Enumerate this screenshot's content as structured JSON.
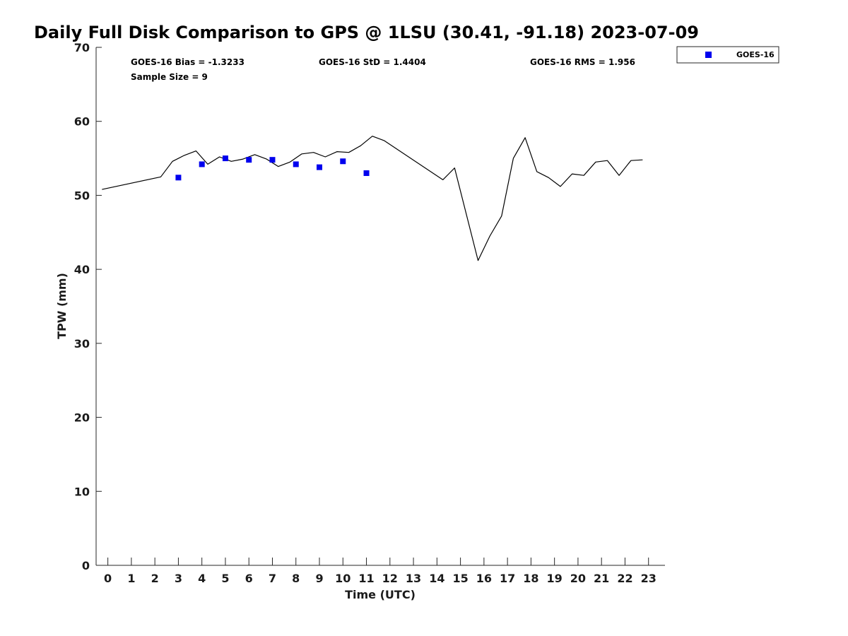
{
  "chart_data": {
    "type": "scatter",
    "title": "Daily Full Disk Comparison to GPS @ 1LSU (30.41, -91.18) 2023-07-09",
    "xlabel": "Time (UTC)",
    "ylabel": "TPW (mm)",
    "xlim": [
      -0.5,
      23.7
    ],
    "ylim": [
      0,
      70
    ],
    "xticks": [
      0,
      1,
      2,
      3,
      4,
      5,
      6,
      7,
      8,
      9,
      10,
      11,
      12,
      13,
      14,
      15,
      16,
      17,
      18,
      19,
      20,
      21,
      22,
      23
    ],
    "yticks": [
      0,
      10,
      20,
      30,
      40,
      50,
      60,
      70
    ],
    "grid": false,
    "legend_position": "top-right",
    "stats": [
      "GOES-16 Bias = -1.3233",
      "GOES-16 StD = 1.4404",
      "GOES-16 RMS = 1.956",
      "Sample Size = 9"
    ],
    "series": [
      {
        "name": "GOES-16",
        "kind": "scatter",
        "marker": "square",
        "color": "#0000ee",
        "x": [
          3,
          4,
          5,
          6,
          7,
          8,
          9,
          10,
          11
        ],
        "y": [
          52.4,
          54.2,
          55.0,
          54.8,
          54.8,
          54.2,
          53.8,
          54.6,
          53.0
        ]
      },
      {
        "kind": "line",
        "color": "#000000",
        "x": [
          -0.25,
          2.25,
          2.75,
          3.25,
          3.75,
          4.25,
          4.75,
          5.25,
          5.75,
          6.25,
          6.75,
          7.25,
          7.75,
          8.25,
          8.75,
          9.25,
          9.75,
          10.25,
          10.75,
          11.25,
          11.75,
          14.25,
          14.75,
          15.75,
          16.25,
          16.75,
          17.25,
          17.75,
          18.25,
          18.75,
          19.25,
          19.75,
          20.25,
          20.75,
          21.25,
          21.75,
          22.25,
          22.75
        ],
        "y": [
          50.8,
          52.5,
          54.6,
          55.4,
          56.0,
          54.2,
          55.2,
          54.6,
          54.9,
          55.5,
          54.9,
          53.9,
          54.5,
          55.6,
          55.8,
          55.2,
          55.9,
          55.8,
          56.7,
          58.0,
          57.4,
          52.1,
          53.7,
          41.2,
          44.5,
          47.2,
          55.0,
          57.8,
          53.2,
          52.4,
          51.2,
          52.9,
          52.7,
          54.5,
          54.7,
          52.7,
          54.7,
          54.8
        ]
      }
    ]
  }
}
